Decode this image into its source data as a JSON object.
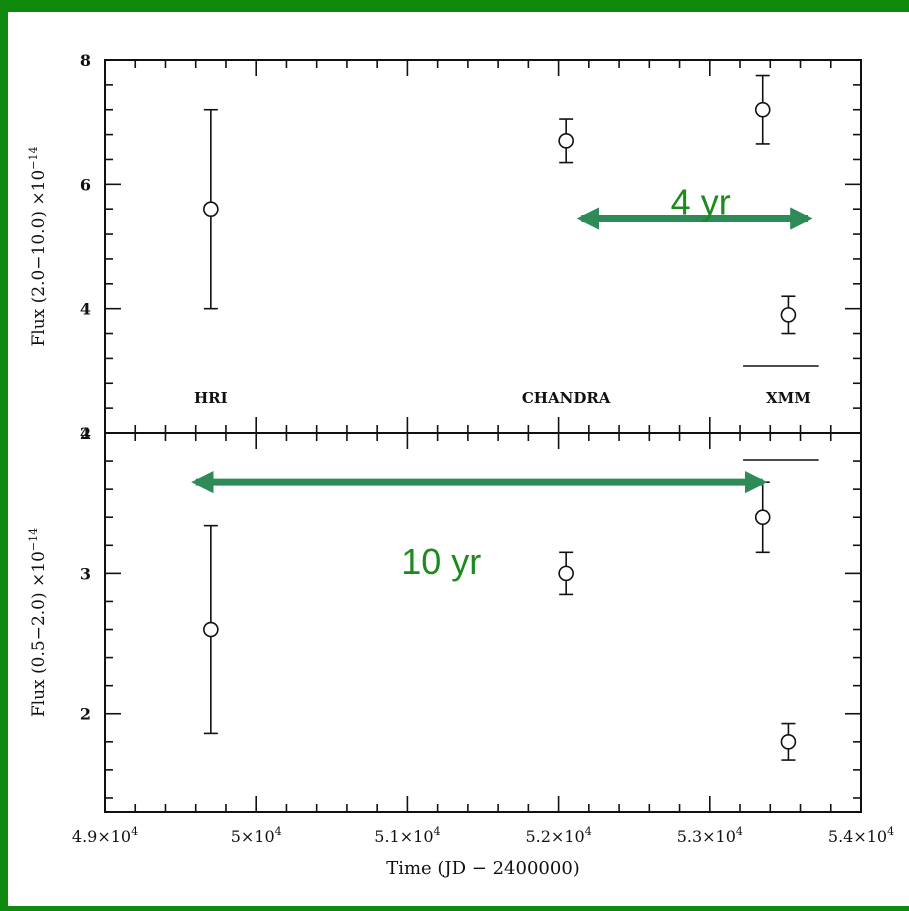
{
  "chart_data": [
    {
      "type": "scatter",
      "panel": "top",
      "ylabel_main": "Flux (2.0−10.0) ×10",
      "ylabel_exp": "−14",
      "ylim": [
        2,
        8
      ],
      "yticks": [
        "2",
        "4",
        "6",
        "8"
      ],
      "xlim": [
        49000,
        54000
      ],
      "points": [
        {
          "x": 49700,
          "y": 5.6,
          "err": 1.6
        },
        {
          "x": 52050,
          "y": 6.7,
          "err": 0.35
        },
        {
          "x": 53350,
          "y": 7.2,
          "err": 0.55
        },
        {
          "x": 53520,
          "y": 3.9,
          "err": 0.3
        }
      ],
      "instrument_labels": [
        {
          "text": "HRI",
          "x": 49700
        },
        {
          "text": "CHANDRA",
          "x": 52050
        },
        {
          "text": "XMM",
          "x": 53520
        }
      ],
      "annotation": {
        "text": "4 yr",
        "from": 52150,
        "to": 53650,
        "y": 5.45
      }
    },
    {
      "type": "scatter",
      "panel": "bottom",
      "ylabel_main": "Flux (0.5−2.0)  ×10",
      "ylabel_exp": "−14",
      "ylim": [
        1.3,
        4
      ],
      "yticks": [
        "2",
        "3",
        "4"
      ],
      "xlim": [
        49000,
        54000
      ],
      "xlabel": "Time (JD − 2400000)",
      "xticks": [
        {
          "value": 49000,
          "mant": "4.9×10",
          "exp": "4"
        },
        {
          "value": 50000,
          "mant": "5×10",
          "exp": "4"
        },
        {
          "value": 51000,
          "mant": "5.1×10",
          "exp": "4"
        },
        {
          "value": 52000,
          "mant": "5.2×10",
          "exp": "4"
        },
        {
          "value": 53000,
          "mant": "5.3×10",
          "exp": "4"
        },
        {
          "value": 54000,
          "mant": "5.4×10",
          "exp": "4"
        }
      ],
      "points": [
        {
          "x": 49700,
          "y": 2.6,
          "err": 0.74
        },
        {
          "x": 52050,
          "y": 3.0,
          "err": 0.15
        },
        {
          "x": 53350,
          "y": 3.4,
          "err": 0.25
        },
        {
          "x": 53520,
          "y": 1.8,
          "err": 0.13
        }
      ],
      "annotation": {
        "text": "10 yr",
        "from": 49600,
        "to": 53350,
        "y": 3.65
      }
    }
  ],
  "colors": {
    "frame": "#0f8a0f",
    "arrow": "#2e8b57",
    "annotation_text": "#1c8a1c",
    "ink": "#111111"
  }
}
